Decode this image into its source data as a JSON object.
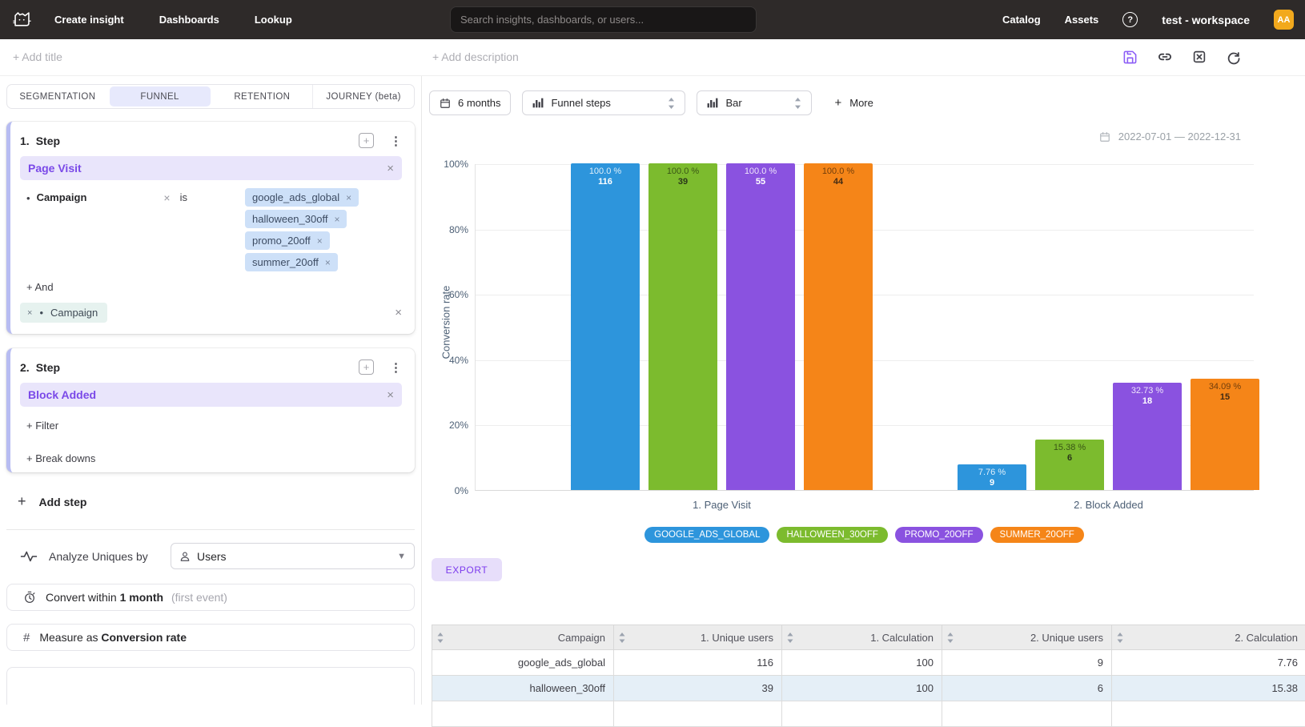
{
  "topnav": {
    "left_items": [
      "Create insight",
      "Dashboards",
      "Lookup"
    ],
    "search_placeholder": "Search insights, dashboards, or users...",
    "right_items": [
      "Catalog",
      "Assets"
    ],
    "help": "?",
    "workspace": "test - workspace",
    "avatar": "AA"
  },
  "header": {
    "add_title": "+ Add title",
    "add_description": "+ Add description"
  },
  "sidebar": {
    "tabs": [
      {
        "label": "SEGMENTATION",
        "active": false
      },
      {
        "label": "FUNNEL",
        "active": true
      },
      {
        "label": "RETENTION",
        "active": false
      },
      {
        "label": "JOURNEY (beta)",
        "active": false
      }
    ],
    "step1": {
      "number": "1.",
      "word": "Step",
      "event": "Page Visit",
      "filter_property": "Campaign",
      "operator": "is",
      "values": [
        "google_ads_global",
        "halloween_30off",
        "promo_20off",
        "summer_20off"
      ],
      "and_label": "+ And",
      "breakdown": "Campaign"
    },
    "step2": {
      "number": "2.",
      "word": "Step",
      "event": "Block Added",
      "filter_label": "+ Filter",
      "breakdowns_label": "+ Break downs"
    },
    "add_step": "Add step",
    "analyze": {
      "label": "Analyze Uniques by",
      "value": "Users"
    },
    "convert": {
      "prefix": "Convert within",
      "value": "1 month",
      "suffix": "(first event)"
    },
    "measure": {
      "prefix": "Measure as",
      "value": "Conversion rate"
    }
  },
  "toolbar": {
    "range": "6 months",
    "view": "Funnel steps",
    "chart_type": "Bar",
    "more": "More",
    "date_range": "2022-07-01 — 2022-12-31"
  },
  "chart_data": {
    "type": "bar",
    "ylabel": "Conversion rate",
    "ylim": [
      0,
      100
    ],
    "yticks": [
      {
        "label": "100%",
        "value": 100
      },
      {
        "label": "80%",
        "value": 80
      },
      {
        "label": "60%",
        "value": 60
      },
      {
        "label": "40%",
        "value": 40
      },
      {
        "label": "20%",
        "value": 20
      },
      {
        "label": "0%",
        "value": 0
      }
    ],
    "categories": [
      "1. Page Visit",
      "2. Block Added"
    ],
    "series": [
      {
        "name": "GOOGLE_ADS_GLOBAL",
        "color": "#2d95dc",
        "values": [
          100.0,
          7.76
        ],
        "counts": [
          116,
          9
        ],
        "pct_labels": [
          "100.0 %",
          "7.76 %"
        ]
      },
      {
        "name": "HALLOWEEN_30OFF",
        "color": "#7cbb2e",
        "values": [
          100.0,
          15.38
        ],
        "counts": [
          39,
          6
        ],
        "pct_labels": [
          "100.0 %",
          "15.38 %"
        ]
      },
      {
        "name": "PROMO_20OFF",
        "color": "#8a52e0",
        "values": [
          100.0,
          32.73
        ],
        "counts": [
          55,
          18
        ],
        "pct_labels": [
          "100.0 %",
          "32.73 %"
        ]
      },
      {
        "name": "SUMMER_20OFF",
        "color": "#f58518",
        "values": [
          100.0,
          34.09
        ],
        "counts": [
          44,
          15
        ],
        "pct_labels": [
          "100.0 %",
          "34.09 %"
        ]
      }
    ],
    "legend_position": "bottom",
    "grid": true
  },
  "export_label": "EXPORT",
  "table": {
    "columns": [
      "Campaign",
      "1. Unique users",
      "1. Calculation",
      "2. Unique users",
      "2. Calculation"
    ],
    "rows": [
      [
        "google_ads_global",
        "116",
        "100",
        "9",
        "7.76"
      ],
      [
        "halloween_30off",
        "39",
        "100",
        "6",
        "15.38"
      ]
    ]
  }
}
